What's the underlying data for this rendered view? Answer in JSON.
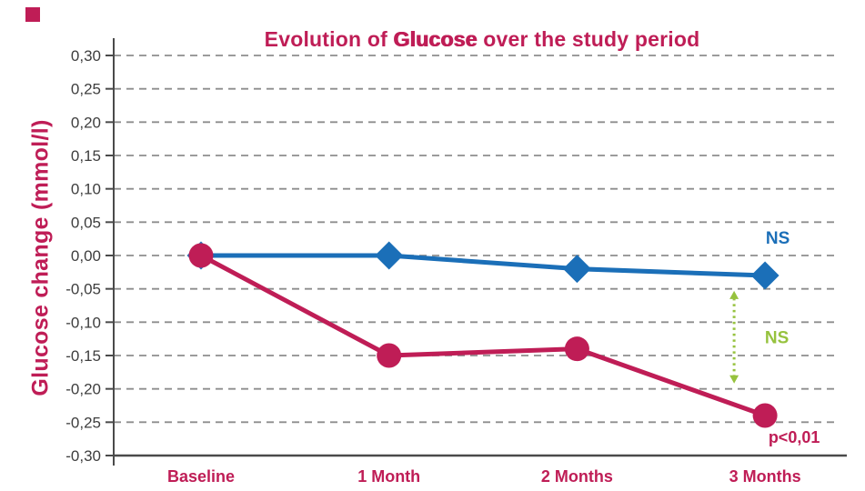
{
  "title": {
    "prefix": "Evolution of ",
    "emphasis": "Glucose",
    "suffix": " over the study period"
  },
  "colors": {
    "crimson": "#bf1d56",
    "blue": "#1b6fb8",
    "green": "#96c23e",
    "grid": "#8d8d8d",
    "axis": "#4a4a4a",
    "tick_text": "#3e3e3e"
  },
  "chart_data": {
    "type": "line",
    "title": "Evolution of Glucose over the study period",
    "ylabel": "Glucose change (mmol/l)",
    "xlabel": "",
    "categories": [
      "Baseline",
      "1 Month",
      "2 Months",
      "3 Months"
    ],
    "ylim": [
      -0.3,
      0.3
    ],
    "ytick_step": 0.05,
    "ytick_labels": [
      "0,30",
      "0,25",
      "0,20",
      "0,15",
      "0,10",
      "0,05",
      "0,00",
      "-0,05",
      "-0,10",
      "-0,15",
      "-0,20",
      "-0,25",
      "-0,30"
    ],
    "grid": "horizontal-dashed",
    "legend": "none",
    "series": [
      {
        "name": "blue-diamond-series",
        "marker": "diamond",
        "color_key": "blue",
        "values": [
          0.0,
          0.0,
          -0.02,
          -0.03
        ],
        "significance": "NS"
      },
      {
        "name": "crimson-circle-series",
        "marker": "circle",
        "color_key": "crimson",
        "values": [
          0.0,
          -0.15,
          -0.14,
          -0.24
        ],
        "significance": "p<0,01"
      }
    ],
    "annotations": [
      {
        "text": "NS",
        "color_key": "blue",
        "xi": 3,
        "dx": 14,
        "value": 0.025,
        "size": 19
      },
      {
        "text": "NS",
        "color_key": "green",
        "xi": 3,
        "dx": 13,
        "value": -0.124,
        "size": 19
      },
      {
        "text": "p<0,01",
        "color_key": "crimson",
        "xi": 3,
        "dx": 32,
        "value": -0.273,
        "size": 18
      }
    ],
    "arrow": {
      "color_key": "green",
      "xi": 3,
      "dx": -34,
      "from_value": -0.053,
      "to_value": -0.192,
      "style": "dotted",
      "double_headed": true
    }
  }
}
